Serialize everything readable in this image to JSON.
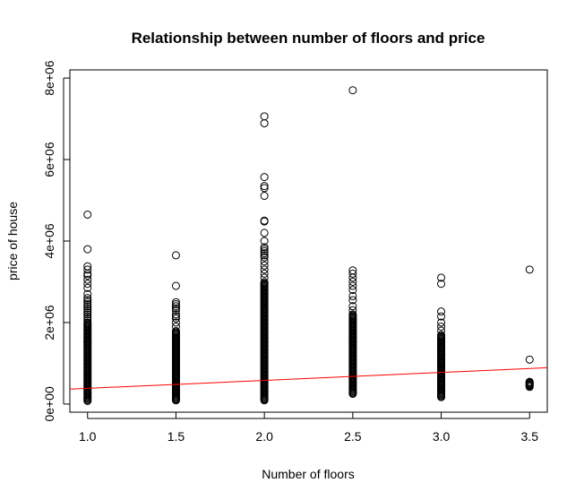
{
  "chart_data": {
    "type": "scatter",
    "title": "Relationship between number of floors and price",
    "xlabel": "Number of floors",
    "ylabel": "price of house",
    "xlim": [
      0.9,
      3.6
    ],
    "ylim": [
      -200000,
      8200000
    ],
    "xticks": [
      1.0,
      1.5,
      2.0,
      2.5,
      3.0,
      3.5
    ],
    "xtick_labels": [
      "1.0",
      "1.5",
      "2.0",
      "2.5",
      "3.0",
      "3.5"
    ],
    "yticks": [
      0,
      2000000,
      4000000,
      6000000,
      8000000
    ],
    "ytick_labels": [
      "0e+00",
      "2e+06",
      "4e+06",
      "6e+06",
      "8e+06"
    ],
    "grid": false,
    "point_color": "#000000",
    "line_color": "#ff0000",
    "fit_line": {
      "intercept": 190000,
      "slope": 195000
    },
    "groups": [
      {
        "x": 1.0,
        "ymin": 75000,
        "ymax": 2000000,
        "outliers": [
          4650000,
          3800000,
          3380000,
          3300000,
          3200000,
          3150000,
          3050000,
          2950000,
          2850000,
          2700000,
          2600000,
          2550000,
          2500000,
          2450000,
          2400000,
          2350000,
          2300000,
          2250000,
          2200000,
          2150000,
          2100000,
          2050000
        ]
      },
      {
        "x": 1.5,
        "ymin": 90000,
        "ymax": 1800000,
        "outliers": [
          3650000,
          2900000,
          2500000,
          2450000,
          2400000,
          2350000,
          2300000,
          2200000,
          2150000,
          2100000,
          2000000,
          1900000
        ]
      },
      {
        "x": 2.0,
        "ymin": 90000,
        "ymax": 3000000,
        "outliers": [
          7060000,
          6890000,
          5570000,
          5350000,
          5300000,
          5110000,
          4500000,
          4480000,
          4200000,
          4000000,
          3850000,
          3800000,
          3750000,
          3700000,
          3650000,
          3600000,
          3500000,
          3400000,
          3300000,
          3200000,
          3100000
        ]
      },
      {
        "x": 2.5,
        "ymin": 250000,
        "ymax": 2200000,
        "outliers": [
          7700000,
          3280000,
          3200000,
          3100000,
          3000000,
          2900000,
          2800000,
          2650000,
          2550000,
          2400000,
          2300000
        ]
      },
      {
        "x": 3.0,
        "ymin": 170000,
        "ymax": 1700000,
        "outliers": [
          3100000,
          2950000,
          2270000,
          2150000,
          2000000,
          1900000,
          1800000
        ]
      },
      {
        "x": 3.5,
        "ymin": 420000,
        "ymax": 550000,
        "outliers": [
          3300000,
          1090000,
          540000,
          520000,
          480000,
          450000
        ]
      }
    ]
  }
}
